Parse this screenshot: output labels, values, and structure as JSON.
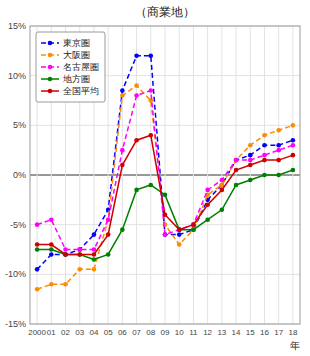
{
  "chart_data": {
    "type": "line",
    "title": "（商業地）",
    "x_label": "年",
    "x": [
      2000,
      2001,
      2002,
      2003,
      2004,
      2005,
      2006,
      2007,
      2008,
      2009,
      2010,
      2011,
      2012,
      2013,
      2014,
      2015,
      2016,
      2017,
      2018
    ],
    "xlim": [
      1999.5,
      2018.5
    ],
    "xticks": [
      2000,
      {
        "value": 2001,
        "label": "01"
      },
      {
        "value": 2002,
        "label": "02"
      },
      {
        "value": 2003,
        "label": "03"
      },
      {
        "value": 2004,
        "label": "04"
      },
      {
        "value": 2005,
        "label": "05"
      },
      {
        "value": 2006,
        "label": "06"
      },
      {
        "value": 2007,
        "label": "07"
      },
      {
        "value": 2008,
        "label": "08"
      },
      {
        "value": 2009,
        "label": "09"
      },
      {
        "value": 2010,
        "label": "10"
      },
      {
        "value": 2011,
        "label": "11"
      },
      {
        "value": 2012,
        "label": "12"
      },
      {
        "value": 2013,
        "label": "13"
      },
      {
        "value": 2014,
        "label": "14"
      },
      {
        "value": 2015,
        "label": "15"
      },
      {
        "value": 2016,
        "label": "16"
      },
      {
        "value": 2017,
        "label": "17"
      },
      {
        "value": 2018,
        "label": "18"
      }
    ],
    "ylim": [
      -15,
      15
    ],
    "yticks": [
      {
        "value": -15,
        "label": "-15%"
      },
      {
        "value": -10,
        "label": "-10%"
      },
      {
        "value": -5,
        "label": "-5%"
      },
      {
        "value": 0,
        "label": "0%"
      },
      {
        "value": 5,
        "label": "5%"
      },
      {
        "value": 10,
        "label": "10%"
      },
      {
        "value": 15,
        "label": "15%"
      }
    ],
    "grid": true,
    "legend": "upper left",
    "series": [
      {
        "name": "東京圏",
        "color": "#0000FF",
        "marker": "circle",
        "line_style": "dashed",
        "values": [
          -9.5,
          -8.0,
          -8.0,
          -7.5,
          -6.0,
          -3.5,
          8.5,
          12.0,
          12.0,
          -6.0,
          -6.0,
          -5.5,
          -2.5,
          -1.0,
          1.5,
          2.0,
          3.0,
          3.0,
          3.5
        ]
      },
      {
        "name": "大阪圏",
        "color": "#FF8C00",
        "marker": "circle",
        "line_style": "dashed",
        "values": [
          -11.5,
          -11.0,
          -11.0,
          -9.5,
          -9.5,
          -4.5,
          8.0,
          9.0,
          7.5,
          -5.0,
          -7.0,
          -5.5,
          -2.0,
          -1.0,
          1.5,
          3.0,
          4.0,
          4.5,
          5.0
        ]
      },
      {
        "name": "名古屋圏",
        "color": "#FF00FF",
        "marker": "circle",
        "line_style": "dashed",
        "values": [
          -5.0,
          -4.5,
          -7.5,
          -7.5,
          -7.5,
          -4.5,
          2.5,
          8.0,
          8.5,
          -6.0,
          -5.5,
          -5.0,
          -1.5,
          -0.5,
          1.5,
          1.5,
          2.0,
          2.5,
          3.0
        ]
      },
      {
        "name": "地方圏",
        "color": "#008000",
        "marker": "circle",
        "line_style": "solid",
        "values": [
          -7.5,
          -7.5,
          -8.0,
          -8.0,
          -8.5,
          -8.0,
          -5.5,
          -1.5,
          -1.0,
          -2.0,
          -5.5,
          -5.5,
          -4.5,
          -3.5,
          -1.0,
          -0.5,
          0.0,
          0.0,
          0.5
        ]
      },
      {
        "name": "全国平均",
        "color": "#CC0000",
        "marker": "circle",
        "line_style": "solid",
        "values": [
          -7.0,
          -7.0,
          -8.0,
          -8.0,
          -8.0,
          -6.0,
          1.0,
          3.5,
          4.0,
          -4.0,
          -5.5,
          -5.0,
          -3.0,
          -1.5,
          0.5,
          1.0,
          1.5,
          1.5,
          2.0
        ]
      }
    ]
  }
}
